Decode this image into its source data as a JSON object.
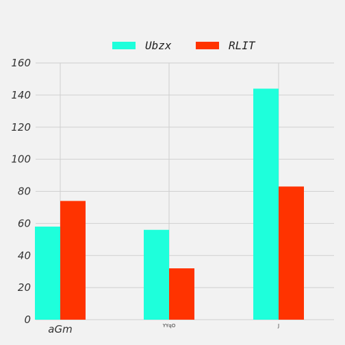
{
  "chart_data": {
    "type": "bar",
    "categories": [
      "aGm",
      "YYqO",
      "J"
    ],
    "series": [
      {
        "name": "Ubzx",
        "values": [
          58,
          56,
          144
        ],
        "color": "#1effdb"
      },
      {
        "name": "RLIT",
        "values": [
          74,
          32,
          83
        ],
        "color": "#ff3300"
      }
    ],
    "title": "",
    "xlabel": "",
    "ylabel": "",
    "ylim": [
      0,
      160
    ],
    "yticks": [
      0,
      20,
      40,
      60,
      80,
      100,
      120,
      140,
      160
    ],
    "grid": true,
    "legend_position": "top-center"
  }
}
